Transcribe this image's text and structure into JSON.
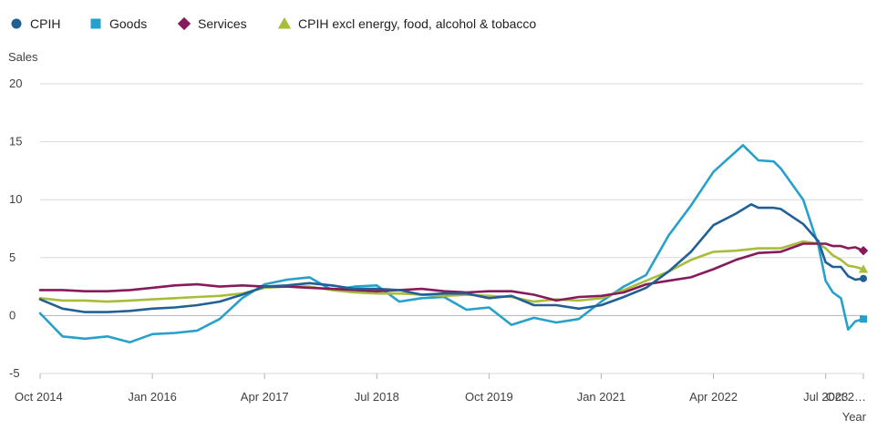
{
  "chart_data": {
    "type": "line",
    "ylabel": "Sales",
    "xlabel": "Year",
    "ylim": [
      -5,
      20
    ],
    "yticks": [
      -5,
      0,
      5,
      10,
      15,
      20
    ],
    "xlim": [
      2014.75,
      2023.92
    ],
    "xticks": [
      {
        "label": "Oct 2014",
        "x": 2014.75
      },
      {
        "label": "Jan 2016",
        "x": 2016.0
      },
      {
        "label": "Apr 2017",
        "x": 2017.25
      },
      {
        "label": "Jul 2018",
        "x": 2018.5
      },
      {
        "label": "Oct 2019",
        "x": 2019.75
      },
      {
        "label": "Jan 2021",
        "x": 2021.0
      },
      {
        "label": "Apr 2022",
        "x": 2022.25
      },
      {
        "label": "Jul 2023",
        "x": 2023.5
      },
      {
        "label": "Oct 2…",
        "x": 2023.92
      }
    ],
    "grid": true,
    "legend_position": "top",
    "series": [
      {
        "name": "CPIH",
        "color": "#206095",
        "marker": "circle",
        "points": [
          [
            2014.75,
            1.4
          ],
          [
            2015.0,
            0.6
          ],
          [
            2015.25,
            0.3
          ],
          [
            2015.5,
            0.3
          ],
          [
            2015.75,
            0.4
          ],
          [
            2016.0,
            0.6
          ],
          [
            2016.25,
            0.7
          ],
          [
            2016.5,
            0.9
          ],
          [
            2016.75,
            1.2
          ],
          [
            2017.0,
            1.8
          ],
          [
            2017.25,
            2.5
          ],
          [
            2017.5,
            2.6
          ],
          [
            2017.75,
            2.8
          ],
          [
            2018.0,
            2.6
          ],
          [
            2018.25,
            2.3
          ],
          [
            2018.5,
            2.3
          ],
          [
            2018.75,
            2.2
          ],
          [
            2019.0,
            1.8
          ],
          [
            2019.25,
            1.9
          ],
          [
            2019.5,
            1.9
          ],
          [
            2019.75,
            1.5
          ],
          [
            2020.0,
            1.7
          ],
          [
            2020.25,
            0.9
          ],
          [
            2020.5,
            0.9
          ],
          [
            2020.75,
            0.6
          ],
          [
            2021.0,
            0.9
          ],
          [
            2021.25,
            1.6
          ],
          [
            2021.5,
            2.4
          ],
          [
            2021.75,
            3.8
          ],
          [
            2022.0,
            5.5
          ],
          [
            2022.25,
            7.8
          ],
          [
            2022.5,
            8.8
          ],
          [
            2022.67,
            9.6
          ],
          [
            2022.75,
            9.3
          ],
          [
            2022.92,
            9.3
          ],
          [
            2023.0,
            9.2
          ],
          [
            2023.25,
            7.9
          ],
          [
            2023.42,
            6.4
          ],
          [
            2023.5,
            4.6
          ],
          [
            2023.58,
            4.2
          ],
          [
            2023.67,
            4.2
          ],
          [
            2023.75,
            3.4
          ],
          [
            2023.83,
            3.1
          ],
          [
            2023.92,
            3.2
          ]
        ]
      },
      {
        "name": "Goods",
        "color": "#27a0cc",
        "marker": "square",
        "points": [
          [
            2014.75,
            0.2
          ],
          [
            2015.0,
            -1.8
          ],
          [
            2015.25,
            -2.0
          ],
          [
            2015.5,
            -1.8
          ],
          [
            2015.75,
            -2.3
          ],
          [
            2016.0,
            -1.6
          ],
          [
            2016.25,
            -1.5
          ],
          [
            2016.5,
            -1.3
          ],
          [
            2016.75,
            -0.3
          ],
          [
            2017.0,
            1.5
          ],
          [
            2017.25,
            2.7
          ],
          [
            2017.5,
            3.1
          ],
          [
            2017.75,
            3.3
          ],
          [
            2018.0,
            2.2
          ],
          [
            2018.25,
            2.5
          ],
          [
            2018.5,
            2.6
          ],
          [
            2018.75,
            1.2
          ],
          [
            2019.0,
            1.5
          ],
          [
            2019.25,
            1.6
          ],
          [
            2019.5,
            0.5
          ],
          [
            2019.75,
            0.7
          ],
          [
            2020.0,
            -0.8
          ],
          [
            2020.25,
            -0.2
          ],
          [
            2020.5,
            -0.6
          ],
          [
            2020.75,
            -0.3
          ],
          [
            2021.0,
            1.2
          ],
          [
            2021.25,
            2.5
          ],
          [
            2021.5,
            3.5
          ],
          [
            2021.75,
            6.9
          ],
          [
            2022.0,
            9.5
          ],
          [
            2022.25,
            12.4
          ],
          [
            2022.42,
            13.6
          ],
          [
            2022.58,
            14.7
          ],
          [
            2022.75,
            13.4
          ],
          [
            2022.92,
            13.3
          ],
          [
            2023.0,
            12.7
          ],
          [
            2023.25,
            10.0
          ],
          [
            2023.42,
            6.0
          ],
          [
            2023.5,
            3.0
          ],
          [
            2023.58,
            2.0
          ],
          [
            2023.67,
            1.5
          ],
          [
            2023.75,
            -1.2
          ],
          [
            2023.83,
            -0.5
          ],
          [
            2023.92,
            -0.3
          ]
        ]
      },
      {
        "name": "Services",
        "color": "#871a5b",
        "marker": "diamond",
        "points": [
          [
            2014.75,
            2.2
          ],
          [
            2015.0,
            2.2
          ],
          [
            2015.25,
            2.1
          ],
          [
            2015.5,
            2.1
          ],
          [
            2015.75,
            2.2
          ],
          [
            2016.0,
            2.4
          ],
          [
            2016.25,
            2.6
          ],
          [
            2016.5,
            2.7
          ],
          [
            2016.75,
            2.5
          ],
          [
            2017.0,
            2.6
          ],
          [
            2017.25,
            2.5
          ],
          [
            2017.5,
            2.5
          ],
          [
            2017.75,
            2.4
          ],
          [
            2018.0,
            2.3
          ],
          [
            2018.25,
            2.2
          ],
          [
            2018.5,
            2.1
          ],
          [
            2018.75,
            2.2
          ],
          [
            2019.0,
            2.3
          ],
          [
            2019.25,
            2.1
          ],
          [
            2019.5,
            2.0
          ],
          [
            2019.75,
            2.1
          ],
          [
            2020.0,
            2.1
          ],
          [
            2020.25,
            1.8
          ],
          [
            2020.5,
            1.3
          ],
          [
            2020.75,
            1.6
          ],
          [
            2021.0,
            1.7
          ],
          [
            2021.25,
            2.0
          ],
          [
            2021.5,
            2.7
          ],
          [
            2021.75,
            3.0
          ],
          [
            2022.0,
            3.3
          ],
          [
            2022.25,
            4.0
          ],
          [
            2022.5,
            4.8
          ],
          [
            2022.75,
            5.4
          ],
          [
            2023.0,
            5.5
          ],
          [
            2023.25,
            6.2
          ],
          [
            2023.5,
            6.2
          ],
          [
            2023.58,
            6.0
          ],
          [
            2023.67,
            6.0
          ],
          [
            2023.75,
            5.8
          ],
          [
            2023.83,
            5.9
          ],
          [
            2023.92,
            5.6
          ]
        ]
      },
      {
        "name": "CPIH excl energy, food, alcohol & tobacco",
        "color": "#a8bd3a",
        "marker": "triangle",
        "points": [
          [
            2014.75,
            1.5
          ],
          [
            2015.0,
            1.3
          ],
          [
            2015.25,
            1.3
          ],
          [
            2015.5,
            1.2
          ],
          [
            2015.75,
            1.3
          ],
          [
            2016.0,
            1.4
          ],
          [
            2016.25,
            1.5
          ],
          [
            2016.5,
            1.6
          ],
          [
            2016.75,
            1.7
          ],
          [
            2017.0,
            1.9
          ],
          [
            2017.25,
            2.4
          ],
          [
            2017.5,
            2.5
          ],
          [
            2017.75,
            2.5
          ],
          [
            2018.0,
            2.2
          ],
          [
            2018.25,
            2.0
          ],
          [
            2018.5,
            1.9
          ],
          [
            2018.75,
            1.9
          ],
          [
            2019.0,
            1.8
          ],
          [
            2019.25,
            1.7
          ],
          [
            2019.5,
            1.8
          ],
          [
            2019.75,
            1.7
          ],
          [
            2020.0,
            1.6
          ],
          [
            2020.25,
            1.2
          ],
          [
            2020.5,
            1.4
          ],
          [
            2020.75,
            1.3
          ],
          [
            2021.0,
            1.5
          ],
          [
            2021.25,
            2.2
          ],
          [
            2021.5,
            3.0
          ],
          [
            2021.75,
            3.8
          ],
          [
            2022.0,
            4.8
          ],
          [
            2022.25,
            5.5
          ],
          [
            2022.5,
            5.6
          ],
          [
            2022.75,
            5.8
          ],
          [
            2023.0,
            5.8
          ],
          [
            2023.25,
            6.4
          ],
          [
            2023.42,
            6.2
          ],
          [
            2023.5,
            5.8
          ],
          [
            2023.58,
            5.2
          ],
          [
            2023.67,
            4.8
          ],
          [
            2023.75,
            4.3
          ],
          [
            2023.83,
            4.2
          ],
          [
            2023.92,
            4.0
          ]
        ]
      }
    ]
  }
}
